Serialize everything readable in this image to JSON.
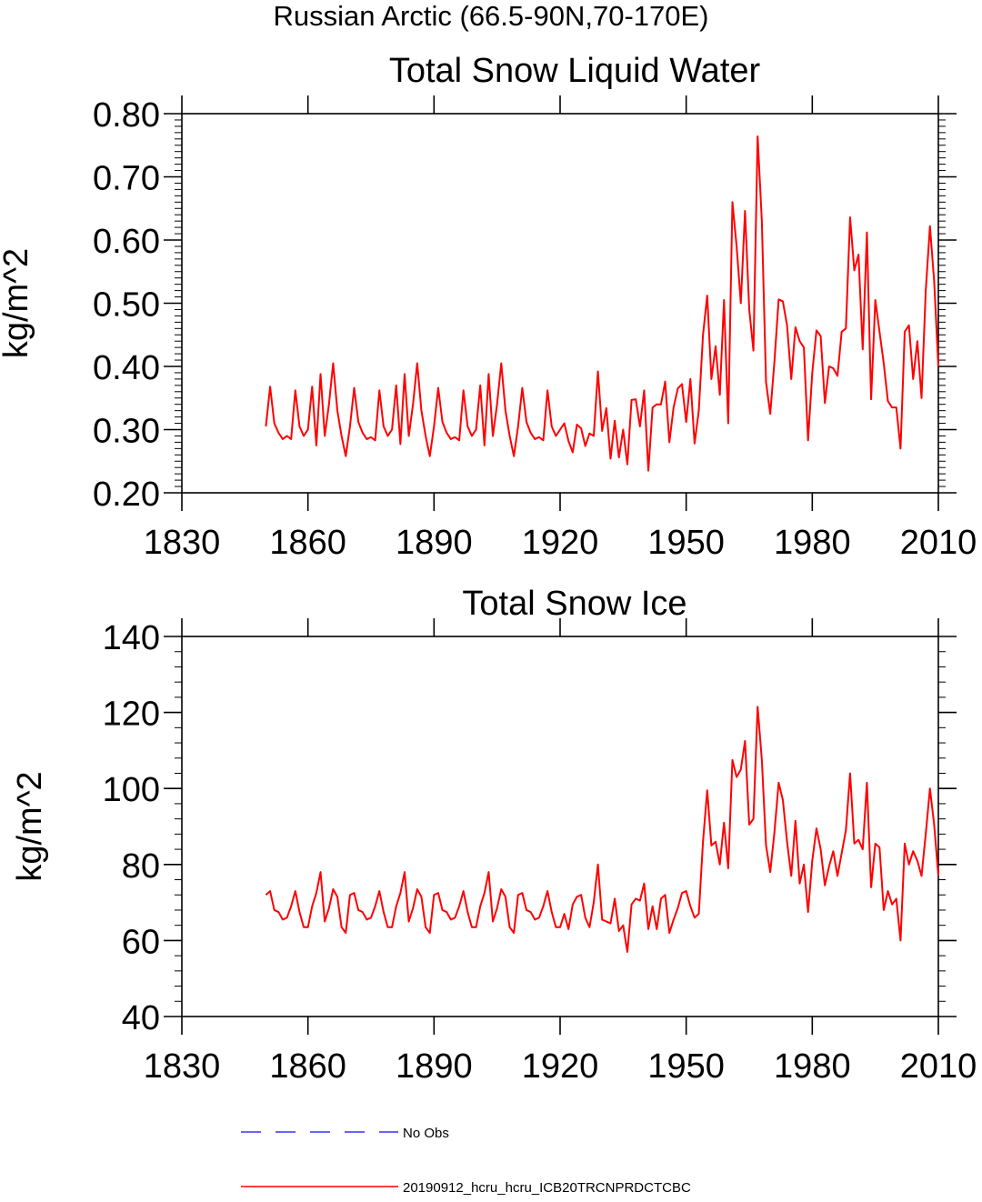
{
  "page_title": "Russian Arctic (66.5-90N,70-170E)",
  "colors": {
    "series": "#ff0000",
    "no_obs": "#3333ff",
    "axis": "#000000"
  },
  "legend": {
    "items": [
      {
        "label": "No Obs",
        "style": "dashed",
        "color": "#3333ff"
      },
      {
        "label": "20190912_hcru_hcru_ICB20TRCNPRDCTCBC",
        "style": "solid",
        "color": "#ff0000"
      }
    ]
  },
  "chart_data": [
    {
      "type": "line",
      "title": "Total Snow Liquid Water",
      "xlabel": "",
      "ylabel": "kg/m^2",
      "xlim": [
        1830,
        2010
      ],
      "ylim": [
        0.2,
        0.8
      ],
      "xticks": [
        1830,
        1860,
        1890,
        1920,
        1950,
        1980,
        2010
      ],
      "xtick_labels": [
        "1830",
        "1860",
        "1890",
        "1920",
        "1950",
        "1980",
        "2010"
      ],
      "yticks": [
        0.2,
        0.3,
        0.4,
        0.5,
        0.6,
        0.7,
        0.8
      ],
      "ytick_labels": [
        "0.20",
        "0.30",
        "0.40",
        "0.50",
        "0.60",
        "0.70",
        "0.80"
      ],
      "x_start": 1850,
      "series": [
        {
          "name": "20190912_hcru_hcru_ICB20TRCNPRDCTCBC",
          "values": [
            0.305,
            0.368,
            0.31,
            0.295,
            0.285,
            0.29,
            0.285,
            0.362,
            0.305,
            0.29,
            0.3,
            0.368,
            0.275,
            0.388,
            0.29,
            0.34,
            0.405,
            0.33,
            0.29,
            0.258,
            0.305,
            0.366,
            0.312,
            0.295,
            0.285,
            0.288,
            0.283,
            0.362,
            0.305,
            0.29,
            0.3,
            0.37,
            0.277,
            0.388,
            0.29,
            0.34,
            0.405,
            0.33,
            0.29,
            0.258,
            0.305,
            0.366,
            0.312,
            0.295,
            0.285,
            0.288,
            0.283,
            0.362,
            0.305,
            0.29,
            0.3,
            0.37,
            0.275,
            0.388,
            0.29,
            0.34,
            0.405,
            0.33,
            0.29,
            0.258,
            0.305,
            0.366,
            0.312,
            0.295,
            0.285,
            0.288,
            0.283,
            0.362,
            0.305,
            0.29,
            0.3,
            0.31,
            0.282,
            0.264,
            0.308,
            0.302,
            0.274,
            0.294,
            0.29,
            0.392,
            0.298,
            0.334,
            0.254,
            0.314,
            0.256,
            0.3,
            0.245,
            0.347,
            0.348,
            0.305,
            0.362,
            0.235,
            0.335,
            0.34,
            0.34,
            0.376,
            0.28,
            0.335,
            0.365,
            0.372,
            0.312,
            0.38,
            0.278,
            0.33,
            0.45,
            0.512,
            0.38,
            0.432,
            0.355,
            0.505,
            0.31,
            0.66,
            0.59,
            0.5,
            0.646,
            0.49,
            0.425,
            0.764,
            0.63,
            0.375,
            0.325,
            0.408,
            0.506,
            0.503,
            0.465,
            0.38,
            0.462,
            0.44,
            0.43,
            0.283,
            0.39,
            0.457,
            0.448,
            0.342,
            0.4,
            0.397,
            0.385,
            0.455,
            0.46,
            0.636,
            0.552,
            0.577,
            0.427,
            0.612,
            0.348,
            0.505,
            0.455,
            0.405,
            0.345,
            0.335,
            0.335,
            0.27,
            0.455,
            0.465,
            0.38,
            0.44,
            0.35,
            0.52,
            0.622,
            0.535,
            0.4
          ]
        }
      ]
    },
    {
      "type": "line",
      "title": "Total Snow Ice",
      "xlabel": "",
      "ylabel": "kg/m^2",
      "xlim": [
        1830,
        2010
      ],
      "ylim": [
        40,
        140
      ],
      "xticks": [
        1830,
        1860,
        1890,
        1920,
        1950,
        1980,
        2010
      ],
      "xtick_labels": [
        "1830",
        "1860",
        "1890",
        "1920",
        "1950",
        "1980",
        "2010"
      ],
      "yticks": [
        40,
        60,
        80,
        100,
        120,
        140
      ],
      "ytick_labels": [
        "40",
        "60",
        "80",
        "100",
        "120",
        "140"
      ],
      "x_start": 1850,
      "series": [
        {
          "name": "20190912_hcru_hcru_ICB20TRCNPRDCTCBC",
          "values": [
            72.0,
            73.0,
            68.0,
            67.5,
            65.5,
            66.0,
            69.0,
            73.0,
            67.5,
            63.5,
            63.5,
            69.0,
            72.5,
            78.0,
            65.0,
            68.5,
            73.5,
            71.5,
            63.5,
            62.0,
            72.0,
            72.5,
            68.0,
            67.5,
            65.5,
            66.0,
            69.0,
            73.0,
            67.5,
            63.5,
            63.5,
            69.0,
            72.5,
            78.0,
            65.0,
            68.5,
            73.5,
            71.5,
            63.5,
            62.0,
            72.0,
            72.5,
            68.0,
            67.5,
            65.5,
            66.0,
            69.0,
            73.0,
            67.5,
            63.5,
            63.5,
            69.0,
            72.5,
            78.0,
            65.0,
            68.5,
            73.5,
            71.5,
            63.5,
            62.0,
            72.0,
            72.5,
            68.0,
            67.5,
            65.5,
            66.0,
            69.0,
            73.0,
            67.5,
            63.5,
            63.5,
            67.0,
            63.0,
            69.5,
            71.5,
            72.0,
            66.0,
            63.5,
            70.0,
            80.0,
            65.5,
            65.0,
            64.5,
            71.0,
            62.5,
            64.0,
            57.0,
            69.5,
            71.0,
            70.5,
            75.0,
            63.0,
            69.0,
            63.0,
            71.0,
            72.0,
            62.0,
            65.5,
            68.5,
            72.5,
            73.0,
            69.0,
            66.0,
            67.0,
            86.0,
            99.5,
            85.0,
            86.0,
            80.0,
            91.0,
            79.0,
            107.5,
            103.0,
            105.0,
            112.5,
            90.5,
            92.0,
            121.5,
            107.5,
            85.0,
            78.0,
            88.5,
            101.5,
            97.0,
            86.0,
            77.0,
            91.5,
            75.0,
            80.0,
            67.5,
            81.0,
            89.5,
            84.0,
            74.5,
            79.5,
            83.5,
            77.0,
            83.0,
            89.0,
            104.0,
            85.5,
            86.5,
            84.0,
            101.5,
            74.0,
            85.5,
            84.5,
            68.0,
            73.0,
            69.5,
            71.0,
            60.0,
            85.5,
            80.0,
            83.5,
            81.0,
            77.0,
            88.0,
            100.0,
            90.5,
            77.0
          ]
        }
      ]
    }
  ]
}
